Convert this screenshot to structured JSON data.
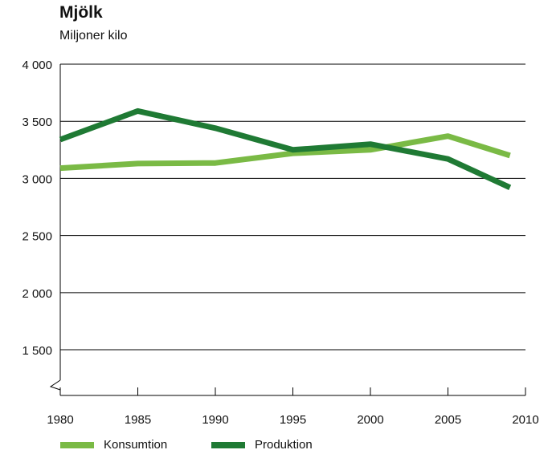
{
  "chart_data": {
    "type": "line",
    "title": "Mjölk",
    "subtitle": "Miljoner kilo",
    "xlabel": "",
    "ylabel": "",
    "x_ticks": [
      1980,
      1985,
      1990,
      1995,
      2000,
      2005,
      2010
    ],
    "y_ticks": [
      1500,
      2000,
      2500,
      3000,
      3500,
      4000
    ],
    "y_tick_labels": [
      "1 500",
      "2 000",
      "2 500",
      "3 000",
      "3 500",
      "4 000"
    ],
    "xlim": [
      1980,
      2010
    ],
    "ylim": [
      1100,
      4000
    ],
    "axis_break": true,
    "grid": "horizontal",
    "legend_position": "bottom-left",
    "series": [
      {
        "name": "Konsumtion",
        "color": "#7aba45",
        "x": [
          1980,
          1985,
          1990,
          1995,
          2000,
          2005,
          2009
        ],
        "y": [
          3090,
          3130,
          3135,
          3220,
          3250,
          3370,
          3200
        ]
      },
      {
        "name": "Produktion",
        "color": "#1f7a34",
        "x": [
          1980,
          1985,
          1990,
          1995,
          2000,
          2005,
          2009
        ],
        "y": [
          3340,
          3590,
          3440,
          3250,
          3300,
          3170,
          2920
        ]
      }
    ]
  }
}
